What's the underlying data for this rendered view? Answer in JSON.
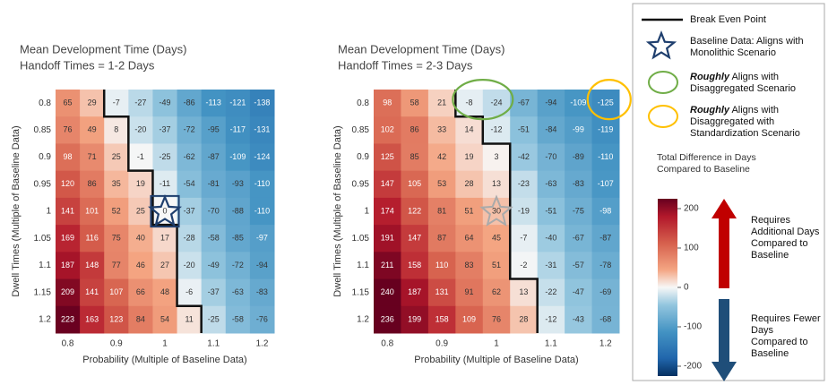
{
  "chart_data": [
    {
      "type": "heatmap",
      "title": "Mean Development Time (Days)",
      "subtitle": "Handoff Times = 1-2 Days",
      "x": [
        0.8,
        0.85,
        0.9,
        0.95,
        1,
        1.05,
        1.1,
        1.15,
        1.2
      ],
      "y": [
        0.8,
        0.85,
        0.9,
        0.95,
        1,
        1.05,
        1.1,
        1.15,
        1.2
      ],
      "xticks": [
        0.8,
        0.9,
        1,
        1.1,
        1.2
      ],
      "yticks": [
        0.8,
        0.85,
        0.9,
        0.95,
        1,
        1.05,
        1.1,
        1.15,
        1.2
      ],
      "xlabel": "Probability (Multiple of Baseline Data)",
      "ylabel": "Dwell Times (Multiple of Baseline Data)",
      "values": [
        [
          65,
          29,
          -7,
          -27,
          -49,
          -86,
          -113,
          -121,
          -138
        ],
        [
          76,
          49,
          8,
          -20,
          -37,
          -72,
          -95,
          -117,
          -131
        ],
        [
          98,
          71,
          25,
          -1,
          -25,
          -62,
          -87,
          -109,
          -124
        ],
        [
          120,
          86,
          35,
          19,
          -11,
          -54,
          -81,
          -93,
          -110
        ],
        [
          141,
          101,
          52,
          25,
          0,
          -37,
          -70,
          -88,
          -110
        ],
        [
          169,
          116,
          75,
          40,
          17,
          -28,
          -58,
          -85,
          -97
        ],
        [
          187,
          148,
          77,
          46,
          27,
          -20,
          -49,
          -72,
          -94
        ],
        [
          209,
          141,
          107,
          66,
          48,
          -6,
          -37,
          -63,
          -83
        ],
        [
          223,
          163,
          123,
          84,
          54,
          11,
          -25,
          -58,
          -76
        ]
      ]
    },
    {
      "type": "heatmap",
      "title": "Mean Development Time (Days)",
      "subtitle": "Handoff Times = 2-3 Days",
      "x": [
        0.8,
        0.85,
        0.9,
        0.95,
        1,
        1.05,
        1.1,
        1.15,
        1.2
      ],
      "y": [
        0.8,
        0.85,
        0.9,
        0.95,
        1,
        1.05,
        1.1,
        1.15,
        1.2
      ],
      "xticks": [
        0.8,
        0.9,
        1,
        1.1,
        1.2
      ],
      "yticks": [
        0.8,
        0.85,
        0.9,
        0.95,
        1,
        1.05,
        1.1,
        1.15,
        1.2
      ],
      "xlabel": "Probability (Multiple of Baseline Data)",
      "ylabel": "Dwell Times (Multiple of Baseline Data)",
      "values": [
        [
          98,
          58,
          21,
          -8,
          -24,
          -67,
          -94,
          -109,
          -125
        ],
        [
          102,
          86,
          33,
          14,
          -12,
          -51,
          -84,
          -99,
          -119
        ],
        [
          125,
          85,
          42,
          19,
          3,
          -42,
          -70,
          -89,
          -110
        ],
        [
          147,
          105,
          53,
          28,
          13,
          -23,
          -63,
          -83,
          -107
        ],
        [
          174,
          122,
          81,
          51,
          30,
          -19,
          -51,
          -75,
          -98
        ],
        [
          191,
          147,
          87,
          64,
          45,
          -7,
          -40,
          -67,
          -87
        ],
        [
          211,
          158,
          110,
          83,
          51,
          -2,
          -31,
          -57,
          -78
        ],
        [
          240,
          187,
          131,
          91,
          62,
          13,
          -22,
          -47,
          -69
        ],
        [
          236,
          199,
          158,
          109,
          76,
          28,
          -12,
          -43,
          -68
        ]
      ]
    }
  ],
  "legend": {
    "break_even": "Break Even Point",
    "baseline": "Baseline Data: Aligns with Monolithic Scenario",
    "disaggregated": {
      "emphasis": "Roughly",
      "text": "Aligns with Disaggregated Scenario"
    },
    "standardization": {
      "emphasis": "Roughly",
      "text": "Aligns with Disaggregated with Standardization Scenario"
    },
    "colorbar": {
      "title": "Total Difference in Days Compared to Baseline",
      "zlim": [
        -225,
        225
      ],
      "ticks": [
        200,
        100,
        0,
        -100,
        -200
      ]
    },
    "additional": "Requires Additional Days Compared to Baseline",
    "fewer": "Requires Fewer Days Compared to Baseline"
  }
}
